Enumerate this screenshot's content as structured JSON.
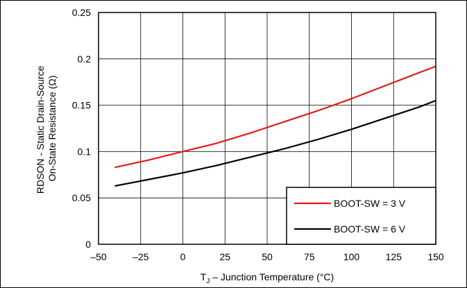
{
  "chart_data": {
    "type": "line",
    "xlabel_main": "T",
    "xlabel_sub": "J",
    "xlabel_rest": " – Junction Temperature (°C)",
    "ylabel_lines": [
      "RDSON - Static Drain-Source",
      "On-State Resistance (Ω)"
    ],
    "xlim": [
      -50,
      150
    ],
    "ylim": [
      0,
      0.25
    ],
    "xticks": [
      -50,
      -25,
      0,
      25,
      50,
      75,
      100,
      125,
      150
    ],
    "xtick_labels": [
      "–50",
      "–25",
      "0",
      "25",
      "50",
      "75",
      "100",
      "125",
      "150"
    ],
    "yticks": [
      0,
      0.05,
      0.1,
      0.15,
      0.2,
      0.25
    ],
    "ytick_labels": [
      "0",
      "0.05",
      "0.1",
      "0.15",
      "0.2",
      "0.25"
    ],
    "grid": true,
    "legend_position": "bottom-right",
    "series": [
      {
        "name": "BOOT-SW = 3 V",
        "color": "#e31a1c",
        "x": [
          -40,
          -20,
          0,
          20,
          40,
          60,
          80,
          100,
          120,
          140,
          150
        ],
        "y": [
          0.083,
          0.091,
          0.1,
          0.109,
          0.12,
          0.132,
          0.144,
          0.157,
          0.171,
          0.185,
          0.192
        ]
      },
      {
        "name": "BOOT-SW = 6 V",
        "color": "#000000",
        "x": [
          -40,
          -20,
          0,
          20,
          40,
          60,
          80,
          100,
          120,
          140,
          150
        ],
        "y": [
          0.063,
          0.07,
          0.077,
          0.085,
          0.094,
          0.103,
          0.113,
          0.124,
          0.136,
          0.148,
          0.155
        ]
      }
    ]
  }
}
